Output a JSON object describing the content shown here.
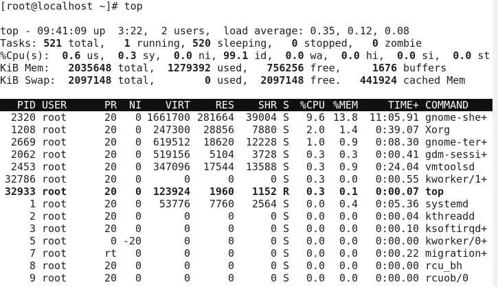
{
  "prompt": "[root@localhost ~]# top",
  "summary": [
    [
      "top - 09:41:09 up  3:22,  2 users,  load average: 0.35, 0.12, 0.08"
    ],
    [
      "Tasks: ",
      "521",
      " total,   ",
      "1",
      " running, ",
      "520",
      " sleeping,   ",
      "0",
      " stopped,   ",
      "0",
      " zombie"
    ],
    [
      "%Cpu(s):  ",
      "0.6",
      " us,  ",
      "0.3",
      " sy,  ",
      "0.0",
      " ni, ",
      "99.1",
      " id,  ",
      "0.0",
      " wa,  ",
      "0.0",
      " hi,  ",
      "0.0",
      " si,  ",
      "0.0",
      " st"
    ],
    [
      "KiB Mem:   ",
      "2035648",
      " total,  ",
      "1279392",
      " used,   ",
      "756256",
      " free,     ",
      "1676",
      " buffers"
    ],
    [
      "KiB Swap:  ",
      "2097148",
      " total,        ",
      "0",
      " used,  ",
      "2097148",
      " free.   ",
      "441924",
      " cached Mem"
    ]
  ],
  "table": {
    "header": [
      "PID",
      "USER",
      "PR",
      "NI",
      "VIRT",
      "RES",
      "SHR",
      "S",
      "%CPU",
      "%MEM",
      "TIME+",
      "COMMAND"
    ],
    "bold_row": 6,
    "rows": [
      [
        "2320",
        "root",
        "20",
        "0",
        "1661700",
        "281664",
        "39004",
        "S",
        "9.6",
        "13.8",
        "11:05.91",
        "gnome-she+"
      ],
      [
        "1208",
        "root",
        "20",
        "0",
        "247300",
        "28856",
        "7880",
        "S",
        "2.0",
        "1.4",
        "0:39.07",
        "Xorg"
      ],
      [
        "2669",
        "root",
        "20",
        "0",
        "619512",
        "18620",
        "12228",
        "S",
        "1.0",
        "0.9",
        "0:08.30",
        "gnome-ter+"
      ],
      [
        "2062",
        "root",
        "20",
        "0",
        "519156",
        "5104",
        "3728",
        "S",
        "0.3",
        "0.3",
        "0:00.41",
        "gdm-sessi+"
      ],
      [
        "2453",
        "root",
        "20",
        "0",
        "347096",
        "17544",
        "13588",
        "S",
        "0.3",
        "0.9",
        "0:24.04",
        "vmtoolsd"
      ],
      [
        "32786",
        "root",
        "20",
        "0",
        "0",
        "0",
        "0",
        "S",
        "0.3",
        "0.0",
        "0:00.55",
        "kworker/1+"
      ],
      [
        "32933",
        "root",
        "20",
        "0",
        "123924",
        "1960",
        "1152",
        "R",
        "0.3",
        "0.1",
        "0:00.07",
        "top"
      ],
      [
        "1",
        "root",
        "20",
        "0",
        "53776",
        "7760",
        "2564",
        "S",
        "0.0",
        "0.4",
        "0:05.36",
        "systemd"
      ],
      [
        "2",
        "root",
        "20",
        "0",
        "0",
        "0",
        "0",
        "S",
        "0.0",
        "0.0",
        "0:00.04",
        "kthreadd"
      ],
      [
        "3",
        "root",
        "20",
        "0",
        "0",
        "0",
        "0",
        "S",
        "0.0",
        "0.0",
        "0:00.10",
        "ksoftirqd+"
      ],
      [
        "5",
        "root",
        "0",
        "-20",
        "0",
        "0",
        "0",
        "S",
        "0.0",
        "0.0",
        "0:00.00",
        "kworker/0+"
      ],
      [
        "7",
        "root",
        "rt",
        "0",
        "0",
        "0",
        "0",
        "S",
        "0.0",
        "0.0",
        "0:00.22",
        "migration+"
      ],
      [
        "8",
        "root",
        "20",
        "0",
        "0",
        "0",
        "0",
        "S",
        "0.0",
        "0.0",
        "0:00.00",
        "rcu_bh"
      ],
      [
        "9",
        "root",
        "20",
        "0",
        "0",
        "0",
        "0",
        "S",
        "0.0",
        "0.0",
        "0:00.00",
        "rcuob/0"
      ]
    ]
  }
}
